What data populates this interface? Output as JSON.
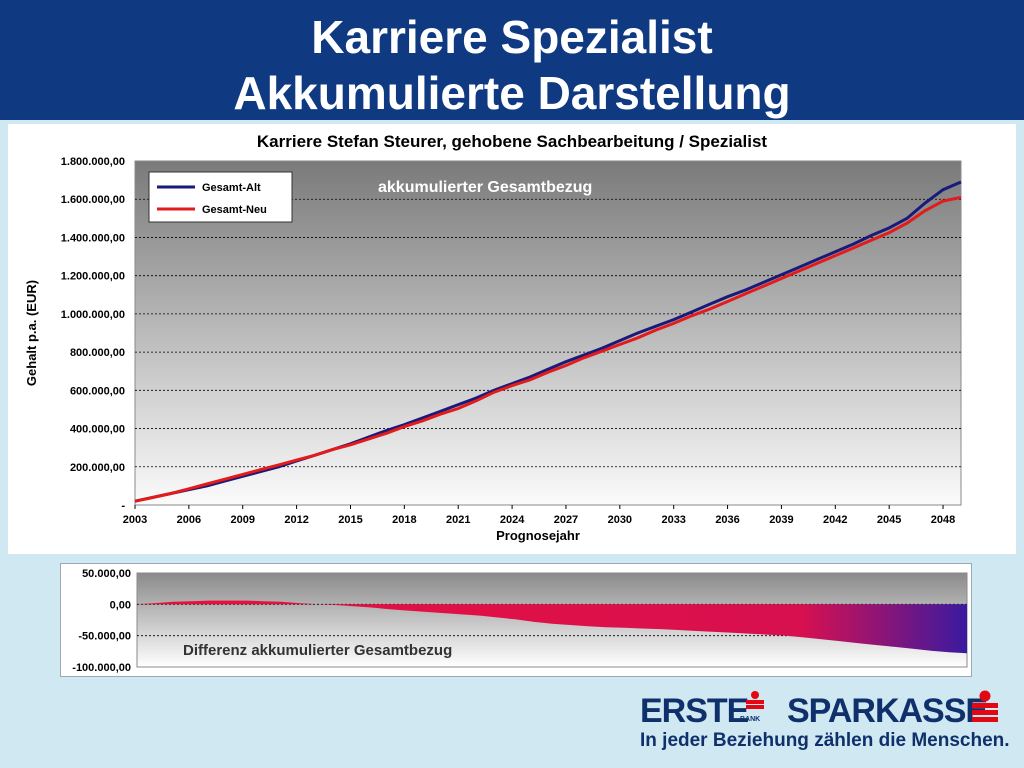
{
  "header": {
    "title_line1": "Karriere Spezialist",
    "title_line2": "Akkumulierte Darstellung"
  },
  "chart_data": [
    {
      "type": "line",
      "title": "Karriere Stefan Steurer, gehobene Sachbearbeitung / Spezialist",
      "annotation": "akkumulierter Gesamtbezug",
      "xlabel": "Prognosejahr",
      "ylabel": "Gehalt p.a. (EUR)",
      "xlim": [
        2003,
        2049
      ],
      "ylim": [
        0,
        1800000
      ],
      "x_tick_labels": [
        "2003",
        "2006",
        "2009",
        "2012",
        "2015",
        "2018",
        "2021",
        "2024",
        "2027",
        "2030",
        "2033",
        "2036",
        "2039",
        "2042",
        "2045",
        "2048"
      ],
      "y_tick_labels": [
        "-",
        "200.000,00",
        "400.000,00",
        "600.000,00",
        "800.000,00",
        "1.000.000,00",
        "1.200.000,00",
        "1.400.000,00",
        "1.600.000,00",
        "1.800.000,00"
      ],
      "legend_placement": "top-left",
      "grid": true,
      "x": [
        2003,
        2004,
        2005,
        2006,
        2007,
        2008,
        2009,
        2010,
        2011,
        2012,
        2013,
        2014,
        2015,
        2016,
        2017,
        2018,
        2019,
        2020,
        2021,
        2022,
        2023,
        2024,
        2025,
        2026,
        2027,
        2028,
        2029,
        2030,
        2031,
        2032,
        2033,
        2034,
        2035,
        2036,
        2037,
        2038,
        2039,
        2040,
        2041,
        2042,
        2043,
        2044,
        2045,
        2046,
        2047,
        2048,
        2049
      ],
      "series": [
        {
          "name": "Gesamt-Alt",
          "color": "#1a1a7a",
          "values": [
            20000,
            40000,
            60000,
            80000,
            100000,
            125000,
            150000,
            175000,
            200000,
            230000,
            260000,
            290000,
            320000,
            355000,
            390000,
            420000,
            455000,
            490000,
            525000,
            560000,
            600000,
            635000,
            670000,
            710000,
            750000,
            785000,
            820000,
            860000,
            900000,
            935000,
            970000,
            1010000,
            1050000,
            1090000,
            1125000,
            1165000,
            1205000,
            1245000,
            1285000,
            1325000,
            1365000,
            1410000,
            1450000,
            1500000,
            1580000,
            1650000,
            1690000
          ]
        },
        {
          "name": "Gesamt-Neu",
          "color": "#e31b1b",
          "values": [
            20000,
            40000,
            60000,
            85000,
            110000,
            135000,
            160000,
            185000,
            210000,
            235000,
            260000,
            290000,
            315000,
            345000,
            375000,
            410000,
            440000,
            475000,
            505000,
            545000,
            590000,
            625000,
            655000,
            695000,
            730000,
            770000,
            805000,
            840000,
            875000,
            915000,
            950000,
            990000,
            1025000,
            1065000,
            1105000,
            1145000,
            1185000,
            1225000,
            1265000,
            1305000,
            1345000,
            1385000,
            1425000,
            1475000,
            1540000,
            1590000,
            1610000
          ]
        }
      ]
    },
    {
      "type": "area",
      "annotation": "Differenz akkumulierter Gesamtbezug",
      "xlim": [
        2003,
        2049
      ],
      "ylim": [
        -100000,
        50000
      ],
      "y_tick_labels": [
        "-100.000,00",
        "-50.000,00",
        "0,00",
        "50.000,00"
      ],
      "grid": true,
      "x": [
        2003,
        2004,
        2005,
        2006,
        2007,
        2008,
        2009,
        2010,
        2011,
        2012,
        2013,
        2014,
        2015,
        2016,
        2017,
        2018,
        2019,
        2020,
        2021,
        2022,
        2023,
        2024,
        2025,
        2026,
        2027,
        2028,
        2029,
        2030,
        2031,
        2032,
        2033,
        2034,
        2035,
        2036,
        2037,
        2038,
        2039,
        2040,
        2041,
        2042,
        2043,
        2044,
        2045,
        2046,
        2047,
        2048,
        2049
      ],
      "series": [
        {
          "name": "",
          "color": "#d01040",
          "values": [
            0,
            2000,
            4000,
            5000,
            6000,
            6000,
            6000,
            5000,
            4000,
            2000,
            0,
            -1000,
            -3000,
            -5000,
            -8000,
            -10000,
            -12000,
            -14000,
            -16000,
            -18000,
            -21000,
            -24000,
            -28000,
            -31000,
            -33000,
            -35000,
            -36500,
            -37500,
            -38500,
            -39500,
            -41000,
            -42500,
            -44000,
            -45500,
            -47000,
            -48500,
            -50000,
            -53000,
            -56000,
            -59000,
            -62000,
            -65000,
            -68000,
            -71000,
            -74000,
            -76500,
            -78000
          ]
        }
      ]
    }
  ],
  "footer": {
    "erste": "ERSTE",
    "bank": "BANK",
    "sparkasse": "SPARKASSE",
    "slogan": "In jeder Beziehung zählen die Menschen."
  },
  "colors": {
    "header_bg": "#0f3a82",
    "slide_bg": "#cfe8f2",
    "brand_red": "#e30613",
    "brand_blue": "#10306b"
  }
}
